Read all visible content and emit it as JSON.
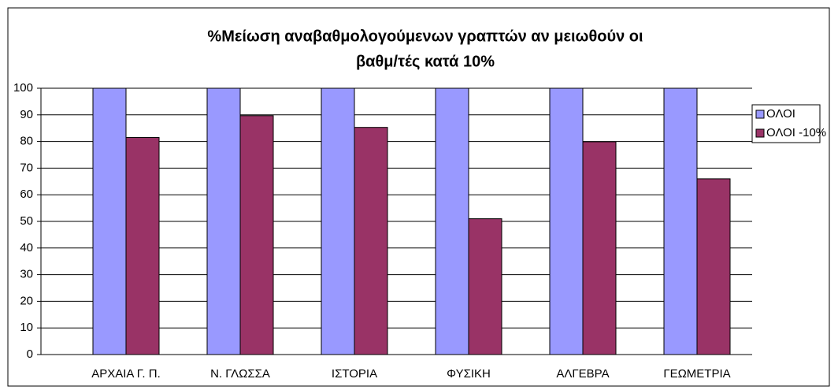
{
  "chart_data": {
    "type": "bar",
    "title": [
      "%Μείωση αναβαθμολογούμενων γραπτών αν μειωθούν οι",
      "βαθμ/τές κατά 10%"
    ],
    "categories": [
      "ΑΡΧΑΙΑ Γ. Π.",
      "Ν. ΓΛΩΣΣΑ",
      "ΙΣΤΟΡΙΑ",
      "ΦΥΣΙΚΗ",
      "ΑΛΓΕΒΡΑ",
      "ΓΕΩΜΕΤΡΙΑ"
    ],
    "series": [
      {
        "name": "ΟΛΟΙ",
        "color": "#9999ff",
        "values": [
          100,
          100,
          100,
          100,
          100,
          100
        ]
      },
      {
        "name": "ΟΛΟΙ -10%",
        "color": "#993366",
        "values": [
          81.5,
          89.7,
          85.3,
          51,
          79.9,
          66
        ]
      }
    ],
    "ylim": [
      0,
      100
    ],
    "yticks": [
      0,
      10,
      20,
      30,
      40,
      50,
      60,
      70,
      80,
      90,
      100
    ],
    "grid": true,
    "legend": "right"
  }
}
